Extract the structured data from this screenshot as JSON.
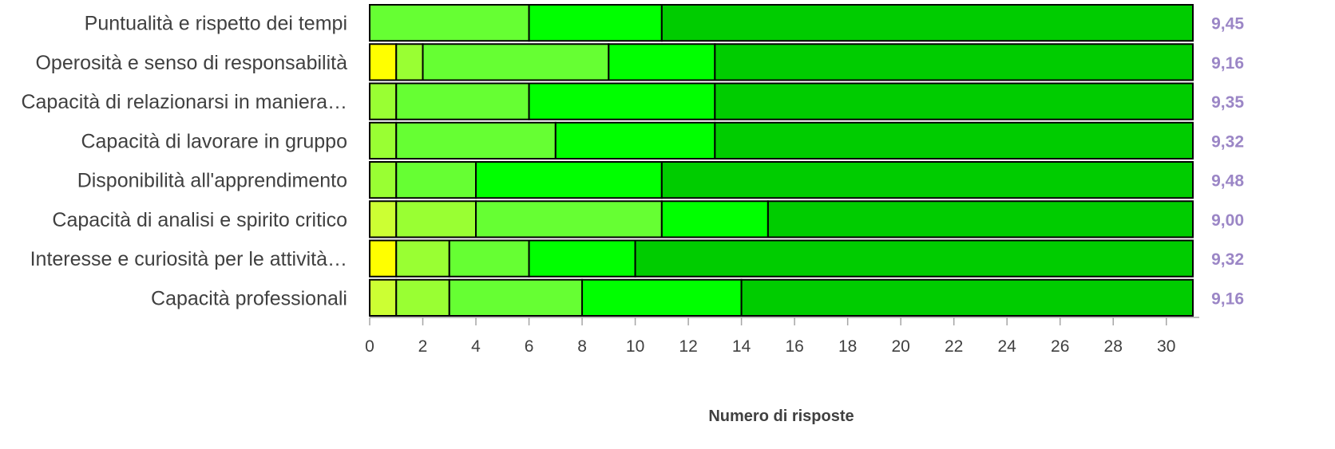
{
  "chart_data": {
    "type": "bar",
    "orientation": "horizontal",
    "stacked": true,
    "categories": [
      "Puntualità e rispetto dei tempi",
      "Operosità e senso di responsabilità",
      "Capacità di relazionarsi in maniera…",
      "Capacità di lavorare in gruppo",
      "Disponibilità all'apprendimento",
      "Capacità di analisi e spirito critico",
      "Interesse e curiosità per le attività…",
      "Capacità professionali"
    ],
    "series": [
      {
        "color": "#ffff00",
        "values": [
          0,
          1,
          0,
          0,
          0,
          0,
          1,
          0
        ]
      },
      {
        "color": "#ccff33",
        "values": [
          0,
          0,
          0,
          0,
          0,
          1,
          0,
          1
        ]
      },
      {
        "color": "#99ff33",
        "values": [
          0,
          1,
          1,
          1,
          1,
          3,
          2,
          2
        ]
      },
      {
        "color": "#66ff33",
        "values": [
          6,
          7,
          5,
          6,
          3,
          7,
          3,
          5
        ]
      },
      {
        "color": "#00ff00",
        "values": [
          5,
          4,
          7,
          6,
          7,
          4,
          4,
          6
        ]
      },
      {
        "color": "#00cc00",
        "values": [
          20,
          18,
          18,
          18,
          20,
          16,
          21,
          17
        ]
      }
    ],
    "scores": [
      "9,45",
      "9,16",
      "9,35",
      "9,32",
      "9,48",
      "9,00",
      "9,32",
      "9,16"
    ],
    "xlabel": "Numero di risposte",
    "xlim": [
      0,
      31
    ],
    "xticks": [
      0,
      2,
      4,
      6,
      8,
      10,
      12,
      14,
      16,
      18,
      20,
      22,
      24,
      26,
      28,
      30
    ],
    "grid": false,
    "legend": "none"
  }
}
